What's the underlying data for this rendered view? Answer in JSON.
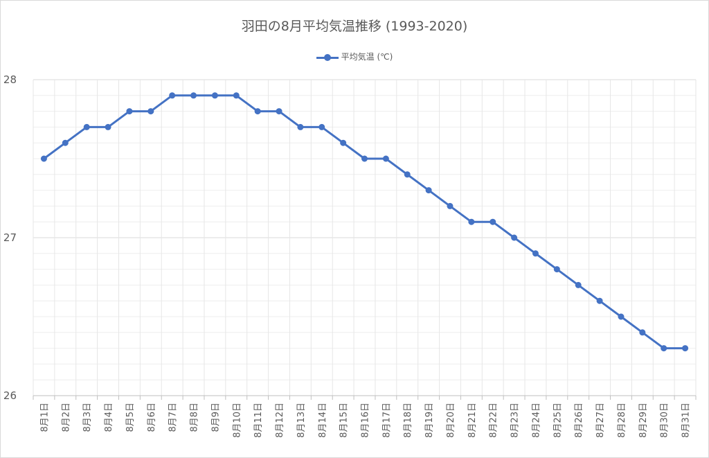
{
  "chart_data": {
    "type": "line",
    "title": "羽田の8月平均気温推移 (1993-2020)",
    "xlabel": "",
    "ylabel": "",
    "ylim": [
      26,
      28
    ],
    "yticks": [
      "26",
      "27",
      "28"
    ],
    "grid": true,
    "legend_position": "top",
    "categories": [
      "8月1日",
      "8月2日",
      "8月3日",
      "8月4日",
      "8月5日",
      "8月6日",
      "8月7日",
      "8月8日",
      "8月9日",
      "8月10日",
      "8月11日",
      "8月12日",
      "8月13日",
      "8月14日",
      "8月15日",
      "8月16日",
      "8月17日",
      "8月18日",
      "8月19日",
      "8月20日",
      "8月21日",
      "8月22日",
      "8月23日",
      "8月24日",
      "8月25日",
      "8月26日",
      "8月27日",
      "8月28日",
      "8月29日",
      "8月30日",
      "8月31日"
    ],
    "series": [
      {
        "name": "平均気温 (℃)",
        "color": "#4472c4",
        "values": [
          27.5,
          27.6,
          27.7,
          27.7,
          27.8,
          27.8,
          27.9,
          27.9,
          27.9,
          27.9,
          27.8,
          27.8,
          27.7,
          27.7,
          27.6,
          27.5,
          27.5,
          27.4,
          27.3,
          27.2,
          27.1,
          27.1,
          27.0,
          26.9,
          26.8,
          26.7,
          26.6,
          26.5,
          26.4,
          26.3,
          26.3
        ]
      }
    ]
  }
}
